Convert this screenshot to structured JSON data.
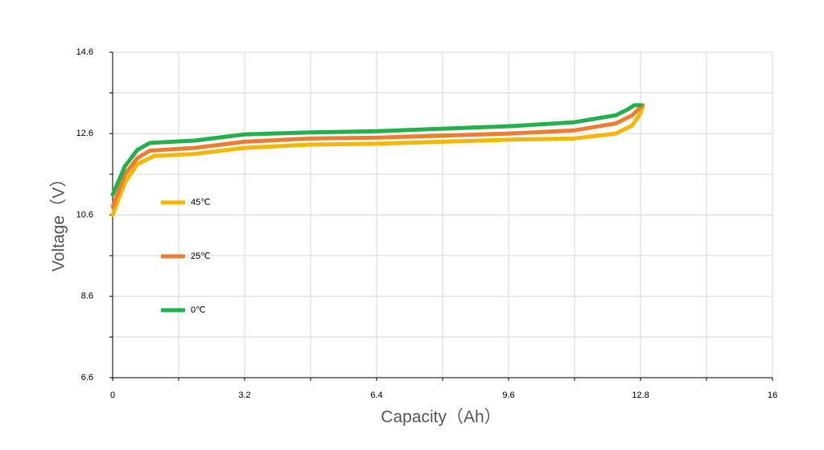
{
  "chart_data": {
    "type": "line",
    "x_label": "Capacity（Ah）",
    "y_label": "Voltage（V）",
    "xlim": [
      0,
      16
    ],
    "xticks": [
      0,
      3.2,
      6.4,
      9.6,
      12.8,
      16
    ],
    "x_minor_ticks": [
      1.6,
      4.8,
      8,
      11.2,
      14.4
    ],
    "ylim": [
      6.6,
      14.6
    ],
    "yticks": [
      6.6,
      8.6,
      10.6,
      12.6,
      14.6
    ],
    "y_minor_ticks": [
      7.6,
      9.6,
      11.6,
      13.6
    ],
    "grid": true,
    "legend": "left",
    "series": [
      {
        "name": "45℃",
        "color": "#f5b800",
        "x": [
          0,
          0.3,
          0.6,
          1.0,
          2.0,
          3.2,
          4.8,
          6.4,
          8.0,
          9.6,
          11.2,
          12.2,
          12.6,
          12.8,
          12.85
        ],
        "values": [
          10.6,
          11.4,
          11.85,
          12.05,
          12.1,
          12.25,
          12.33,
          12.35,
          12.4,
          12.45,
          12.48,
          12.6,
          12.8,
          13.1,
          13.25
        ]
      },
      {
        "name": "25℃",
        "color": "#ed7d31",
        "x": [
          0,
          0.3,
          0.6,
          0.9,
          2.0,
          3.2,
          4.8,
          6.4,
          8.0,
          9.6,
          11.2,
          12.2,
          12.6,
          12.75,
          12.85
        ],
        "values": [
          10.8,
          11.6,
          12.0,
          12.18,
          12.25,
          12.4,
          12.48,
          12.5,
          12.55,
          12.6,
          12.68,
          12.85,
          13.05,
          13.2,
          13.3
        ]
      },
      {
        "name": "0℃",
        "color": "#22b14c",
        "x": [
          0,
          0.3,
          0.6,
          0.9,
          2.0,
          3.2,
          4.8,
          6.4,
          8.0,
          9.6,
          11.2,
          12.2,
          12.5,
          12.65,
          12.8
        ],
        "values": [
          11.1,
          11.8,
          12.2,
          12.37,
          12.43,
          12.58,
          12.63,
          12.66,
          12.72,
          12.78,
          12.88,
          13.05,
          13.2,
          13.3,
          13.3
        ]
      }
    ]
  }
}
